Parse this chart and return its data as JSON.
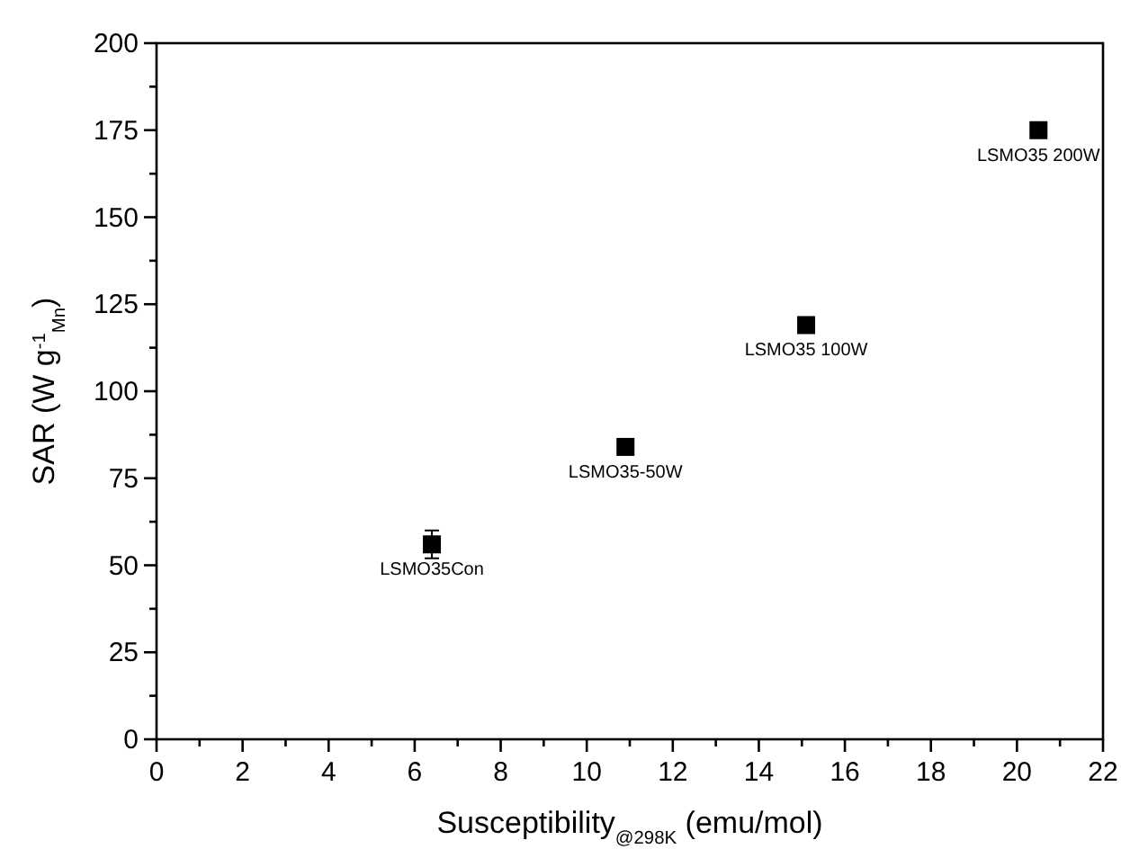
{
  "chart_data": {
    "type": "scatter",
    "xlabel": "Susceptibility$_{@298K}$ (emu/mol)",
    "ylabel": "SAR (W g$^{-1}$$_{Mn}$)",
    "x": [
      6.4,
      10.9,
      15.1,
      20.5
    ],
    "values": [
      56,
      84,
      119,
      175
    ],
    "errors": [
      4,
      null,
      null,
      null
    ],
    "color": "#000000",
    "marker": "square",
    "xlim": [
      0,
      22
    ],
    "ylim": [
      0,
      200
    ],
    "xticks": [
      0,
      {
        "value": 1,
        "label": null
      },
      2,
      {
        "value": 3,
        "label": null
      },
      4,
      {
        "value": 5,
        "label": null
      },
      6,
      {
        "value": 7,
        "label": null
      },
      8,
      {
        "value": 9,
        "label": null
      },
      10,
      {
        "value": 11,
        "label": null
      },
      12,
      {
        "value": 13,
        "label": null
      },
      14,
      {
        "value": 15,
        "label": null
      },
      16,
      {
        "value": 17,
        "label": null
      },
      18,
      {
        "value": 19,
        "label": null
      },
      20,
      {
        "value": 21,
        "label": null
      },
      22
    ],
    "yticks": [
      0,
      {
        "value": 12.5,
        "label": null
      },
      25,
      {
        "value": 37.5,
        "label": null
      },
      50,
      {
        "value": 62.5,
        "label": null
      },
      75,
      {
        "value": 87.5,
        "label": null
      },
      100,
      {
        "value": 112.5,
        "label": null
      },
      125,
      {
        "value": 137.5,
        "label": null
      },
      150,
      {
        "value": 162.5,
        "label": null
      },
      175,
      {
        "value": 187.5,
        "label": null
      },
      200
    ],
    "grid": false,
    "annotations": [
      {
        "text": "LSMO35Con",
        "x": 6.4,
        "y": 56
      },
      {
        "text": "LSMO35-50W",
        "x": 10.9,
        "y": 84
      },
      {
        "text": "LSMO35 100W",
        "x": 15.1,
        "y": 119
      },
      {
        "text": "LSMO35 200W",
        "x": 20.5,
        "y": 175
      }
    ]
  }
}
